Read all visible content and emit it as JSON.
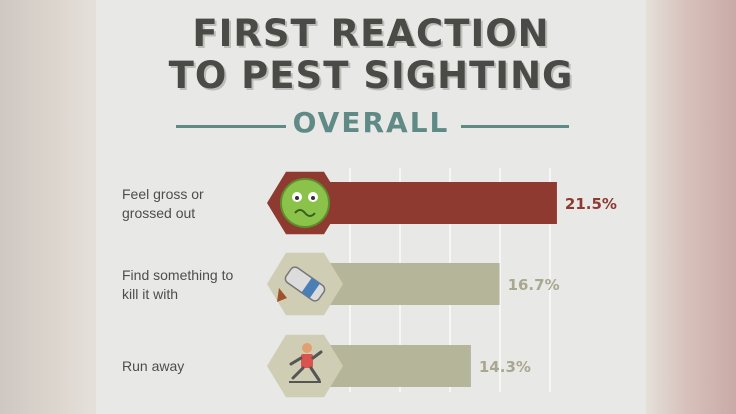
{
  "header": {
    "title_line1": "FIRST REACTION",
    "title_line2": "TO PEST SIGHTING",
    "subtitle": "OVERALL"
  },
  "colors": {
    "highlight_bar": "#8f3a30",
    "bar": "#b5b59a",
    "highlight_value": "#8f3a30",
    "value": "#a8a890"
  },
  "chart_data": {
    "type": "bar",
    "orientation": "horizontal",
    "title": "FIRST REACTION TO PEST SIGHTING",
    "subtitle": "OVERALL",
    "categories": [
      [
        "Feel gross or",
        "grossed out"
      ],
      [
        "Find something to",
        "kill it with"
      ],
      [
        "Run away"
      ]
    ],
    "values": [
      21.5,
      16.7,
      14.3
    ],
    "value_labels": [
      "21.5%",
      "16.7%",
      "14.3%"
    ],
    "icons": [
      "grossed-out-face-icon",
      "spray-can-icon",
      "running-person-icon"
    ],
    "xlim": [
      0,
      25
    ],
    "grid": true
  }
}
